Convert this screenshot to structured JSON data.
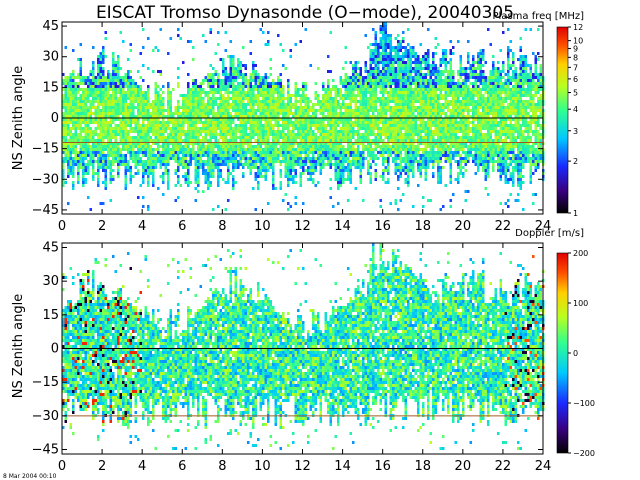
{
  "title": "EISCAT Tromso Dynasonde (O−mode),  20040305",
  "footer": "8 Mar 2004 00:10",
  "chart_data": [
    {
      "type": "heatmap",
      "ylabel": "NS Zenith angle",
      "x_ticks": [
        0,
        2,
        4,
        6,
        8,
        10,
        12,
        14,
        16,
        18,
        20,
        22,
        24
      ],
      "y_ticks": [
        45,
        30,
        15,
        0,
        -15,
        -30,
        -45
      ],
      "xlim": [
        0,
        24
      ],
      "ylim": [
        -47,
        47
      ],
      "reference_lines": [
        0,
        -12
      ],
      "colorbar": {
        "title": "Plasma freq [MHz]",
        "scale": "log",
        "range": [
          1,
          12
        ],
        "ticks": [
          "12",
          "10",
          "9",
          "8",
          "7",
          "6",
          "5",
          "4",
          "3",
          "2",
          "1"
        ],
        "tick_values": [
          12,
          10,
          9,
          8,
          7,
          6,
          5,
          4,
          3,
          2,
          1
        ]
      }
    },
    {
      "type": "heatmap",
      "ylabel": "NS Zenith angle",
      "x_ticks": [
        0,
        2,
        4,
        6,
        8,
        10,
        12,
        14,
        16,
        18,
        20,
        22,
        24
      ],
      "y_ticks": [
        45,
        30,
        15,
        0,
        -15,
        -30,
        -45
      ],
      "xlim": [
        0,
        24
      ],
      "ylim": [
        -47,
        47
      ],
      "reference_lines": [
        0,
        -30
      ],
      "colorbar": {
        "title": "Doppler [m/s]",
        "scale": "linear",
        "range": [
          -200,
          200
        ],
        "ticks": [
          "200",
          "100",
          "0",
          "−100",
          "−200"
        ],
        "tick_values": [
          200,
          100,
          0,
          -100,
          -200
        ]
      }
    }
  ]
}
